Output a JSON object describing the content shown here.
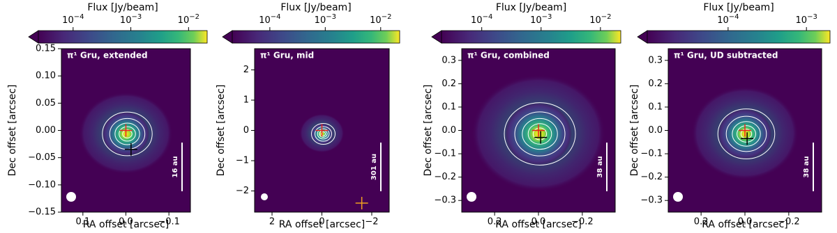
{
  "chart_data": [
    {
      "type": "image",
      "title": "π¹ Gru, extended",
      "xlabel": "RA offset [arcsec]",
      "ylabel": "Dec offset [arcsec]",
      "xlim": [
        0.15,
        -0.15
      ],
      "ylim": [
        -0.15,
        0.15
      ],
      "xticks": [
        0.1,
        {
          "value": 0,
          "label": "0.0"
        },
        {
          "value": -0.1,
          "label": "−0.1"
        }
      ],
      "yticks": [
        {
          "value": -0.15,
          "label": "−0.15"
        },
        {
          "value": -0.1,
          "label": "−0.10"
        },
        {
          "value": -0.05,
          "label": "−0.05"
        },
        {
          "value": 0,
          "label": "0.00"
        },
        0.05,
        {
          "value": 0.1,
          "label": "0.10"
        },
        0.15
      ],
      "colorbar": {
        "label": "Flux [Jy/beam]",
        "scale": "log",
        "colormap": "viridis",
        "clim": [
          2.5e-05,
          0.021
        ],
        "ticks": [
          {
            "value": 0.0001,
            "label": "10−4"
          },
          {
            "value": 0.001,
            "label": "10−3"
          },
          {
            "value": 0.01,
            "label": "10−2"
          }
        ]
      },
      "scale_bar": "16 au",
      "markers": [
        {
          "x": 0,
          "y": 0,
          "color": "#e8231c"
        },
        {
          "x": -0.012,
          "y": -0.035,
          "color": "#000000"
        }
      ]
    },
    {
      "type": "image",
      "title": "π¹ Gru, mid",
      "xlabel": "RA offset [arcsec]",
      "ylabel": "Dec offset [arcsec]",
      "xlim": [
        2.7,
        -2.7
      ],
      "ylim": [
        -2.7,
        2.7
      ],
      "xticks": [
        2,
        0,
        {
          "value": -2,
          "label": "−2"
        }
      ],
      "yticks": [
        {
          "value": -2,
          "label": "−2"
        },
        {
          "value": -1,
          "label": "−1"
        },
        0,
        1,
        2
      ],
      "colorbar": {
        "label": "Flux [Jy/beam]",
        "scale": "log",
        "colormap": "viridis",
        "clim": [
          2.1e-05,
          0.022
        ],
        "ticks": [
          {
            "value": 0.0001,
            "label": "10−4"
          },
          {
            "value": 0.001,
            "label": "10−3"
          },
          {
            "value": 0.01,
            "label": "10−2"
          }
        ]
      },
      "scale_bar": "301 au",
      "markers": [
        {
          "x": 0,
          "y": 0,
          "color": "#e8231c"
        },
        {
          "x": -1.6,
          "y": -2.4,
          "color": "#f0a020"
        }
      ]
    },
    {
      "type": "image",
      "title": "π¹ Gru, combined",
      "xlabel": "RA offset [arcsec]",
      "ylabel": "Dec offset [arcsec]",
      "xlim": [
        0.35,
        -0.35
      ],
      "ylim": [
        -0.35,
        0.35
      ],
      "xticks": [
        0.2,
        {
          "value": 0,
          "label": "0.0"
        },
        {
          "value": -0.2,
          "label": "−0.2"
        }
      ],
      "yticks": [
        {
          "value": -0.3,
          "label": "−0.3"
        },
        {
          "value": -0.2,
          "label": "−0.2"
        },
        {
          "value": -0.1,
          "label": "−0.1"
        },
        {
          "value": 0,
          "label": "0.0"
        },
        0.1,
        0.2,
        0.3
      ],
      "colorbar": {
        "label": "Flux [Jy/beam]",
        "scale": "log",
        "colormap": "viridis",
        "clim": [
          2.1e-05,
          0.022
        ],
        "ticks": [
          {
            "value": 0.0001,
            "label": "10−4"
          },
          {
            "value": 0.001,
            "label": "10−3"
          },
          {
            "value": 0.01,
            "label": "10−2"
          }
        ]
      },
      "scale_bar": "38 au",
      "markers": [
        {
          "x": 0,
          "y": 0,
          "color": "#e8231c"
        },
        {
          "x": -0.01,
          "y": -0.03,
          "color": "#000000"
        }
      ]
    },
    {
      "type": "image",
      "title": "π¹ Gru, UD subtracted",
      "xlabel": "RA offset [arcsec]",
      "ylabel": "Dec offset [arcsec]",
      "xlim": [
        0.35,
        -0.35
      ],
      "ylim": [
        -0.35,
        0.35
      ],
      "xticks": [
        0.2,
        {
          "value": 0,
          "label": "0.0"
        },
        {
          "value": -0.2,
          "label": "−0.2"
        }
      ],
      "yticks": [
        {
          "value": -0.3,
          "label": "−0.3"
        },
        {
          "value": -0.2,
          "label": "−0.2"
        },
        {
          "value": -0.1,
          "label": "−0.1"
        },
        {
          "value": 0,
          "label": "0.0"
        },
        0.1,
        0.2,
        0.3
      ],
      "colorbar": {
        "label": "Flux [Jy/beam]",
        "scale": "log",
        "colormap": "viridis",
        "clim": [
          9.3e-06,
          0.002
        ],
        "ticks": [
          {
            "value": 0.0001,
            "label": "10−4"
          },
          {
            "value": 0.001,
            "label": "10−3"
          }
        ]
      },
      "scale_bar": "38 au",
      "markers": [
        {
          "x": 0,
          "y": 0,
          "color": "#e8231c"
        },
        {
          "x": -0.01,
          "y": -0.035,
          "color": "#000000"
        }
      ]
    }
  ]
}
